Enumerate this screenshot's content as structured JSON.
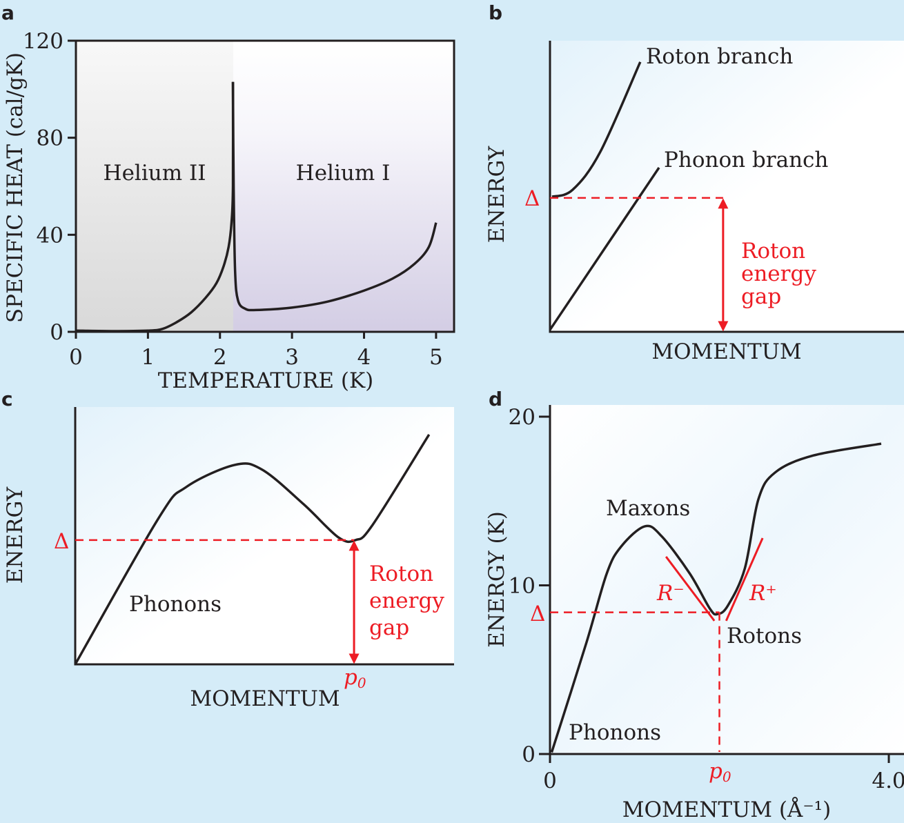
{
  "colors": {
    "background": "#d5ecf8",
    "curve": "#231f20",
    "accent": "#ed1c24",
    "helium2_shade": "#dcdcdc",
    "helium1_shade": "#d3cde4"
  },
  "chart_data": [
    {
      "panel": "a",
      "type": "line",
      "xlabel": "TEMPERATURE (K)",
      "ylabel": "SPECIFIC HEAT (cal/gK)",
      "xlim": [
        0,
        5.25
      ],
      "ylim": [
        0,
        120
      ],
      "xticks": [
        "0",
        "1",
        "2",
        "3",
        "4",
        "5"
      ],
      "yticks": [
        "0",
        "40",
        "80",
        "120"
      ],
      "annotations": [
        "Helium II",
        "Helium I"
      ],
      "lambda_point": 2.18,
      "series": [
        {
          "name": "helium-ii",
          "x": [
            0,
            0.5,
            1,
            1.2,
            1.4,
            1.6,
            1.8,
            1.95,
            2.05,
            2.12,
            2.16,
            2.18,
            2.18
          ],
          "y": [
            0.5,
            0.3,
            0.5,
            1.2,
            4,
            8,
            14,
            20,
            27,
            35,
            45,
            60,
            103
          ]
        },
        {
          "name": "helium-i",
          "x": [
            2.18,
            2.19,
            2.21,
            2.25,
            2.35,
            2.5,
            3,
            3.5,
            4,
            4.4,
            4.7,
            4.9,
            5
          ],
          "y": [
            103,
            60,
            25,
            13,
            9.5,
            9,
            10,
            12.5,
            17,
            22,
            28,
            35,
            45
          ]
        }
      ]
    },
    {
      "panel": "b",
      "type": "line",
      "xlabel": "MOMENTUM",
      "ylabel": "ENERGY",
      "xlim": [
        0,
        10
      ],
      "ylim": [
        0,
        10
      ],
      "delta_label": "Δ",
      "delta": 4.6,
      "gap_label": [
        "Roton",
        "energy",
        "gap"
      ],
      "gap_x": 4.89,
      "series": [
        {
          "name": "Roton branch",
          "x": [
            0.06,
            0.64,
            1.42,
            2.55
          ],
          "y": [
            4.64,
            4.88,
            6.18,
            9.27
          ]
        },
        {
          "name": "Phonon branch",
          "x": [
            0,
            3.08
          ],
          "y": [
            0.07,
            5.64
          ]
        }
      ]
    },
    {
      "panel": "c",
      "type": "line",
      "xlabel": "MOMENTUM",
      "ylabel": "ENERGY",
      "xlim": [
        0,
        10
      ],
      "ylim": [
        0,
        10
      ],
      "delta_label": "Δ",
      "delta": 4.83,
      "p0_label": "p",
      "p0_sub": "0",
      "p0": 7.36,
      "gap_label": [
        "Roton",
        "energy",
        "gap"
      ],
      "annotations": [
        "Phonons"
      ],
      "series": [
        {
          "name": "dispersion",
          "x": [
            0,
            2.2,
            2.93,
            4.21,
            4.94,
            6.03,
            6.95,
            7.4,
            7.85,
            9.34
          ],
          "y": [
            0,
            5.68,
            6.89,
            7.75,
            7.56,
            6.22,
            4.93,
            4.83,
            5.42,
            8.93
          ]
        }
      ]
    },
    {
      "panel": "d",
      "type": "line",
      "xlabel": "MOMENTUM (Å⁻¹)",
      "ylabel": "ENERGY (K)",
      "xlim": [
        0,
        4.0
      ],
      "ylim": [
        0,
        20
      ],
      "xticks": [
        "0",
        "4.0"
      ],
      "yticks": [
        "0",
        "10",
        "20"
      ],
      "delta_label": "Δ",
      "delta": 8.4,
      "p0_label": "p",
      "p0_sub": "0",
      "p0": 2.0,
      "annotations": [
        "Maxons",
        "Rotons",
        "Phonons",
        "R⁻",
        "R⁺"
      ],
      "series": [
        {
          "name": "dispersion",
          "x": [
            0.02,
            0.43,
            0.67,
            0.84,
            1.12,
            1.32,
            1.65,
            1.89,
            1.98,
            2.1,
            2.3,
            2.46,
            2.66,
            3.11,
            3.91
          ],
          "y": [
            0.1,
            6.6,
            10.7,
            12.3,
            13.5,
            12.9,
            10.7,
            8.6,
            8.3,
            8.8,
            11.0,
            15.1,
            16.7,
            17.7,
            18.4
          ]
        },
        {
          "name": "R-",
          "x": [
            1.37,
            1.94
          ],
          "y": [
            11.7,
            7.9
          ]
        },
        {
          "name": "R+",
          "x": [
            2.08,
            2.51
          ],
          "y": [
            7.9,
            12.8
          ]
        }
      ]
    }
  ],
  "panels": {
    "a": "a",
    "b": "b",
    "c": "c",
    "d": "d"
  }
}
